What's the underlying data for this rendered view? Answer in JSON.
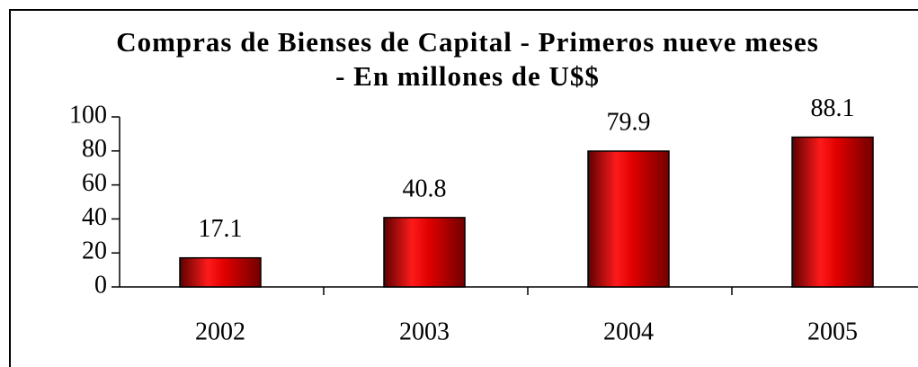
{
  "chart_data": {
    "type": "bar",
    "title": "Compras de Bienses de Capital -  Primeros nueve meses - En millones de U$$",
    "categories": [
      "2002",
      "2003",
      "2004",
      "2005"
    ],
    "values": [
      17.1,
      40.8,
      79.9,
      88.1
    ],
    "color": "#e00000",
    "ylim": [
      0,
      100
    ],
    "yticks": [
      0,
      20,
      40,
      60,
      80,
      100
    ]
  }
}
